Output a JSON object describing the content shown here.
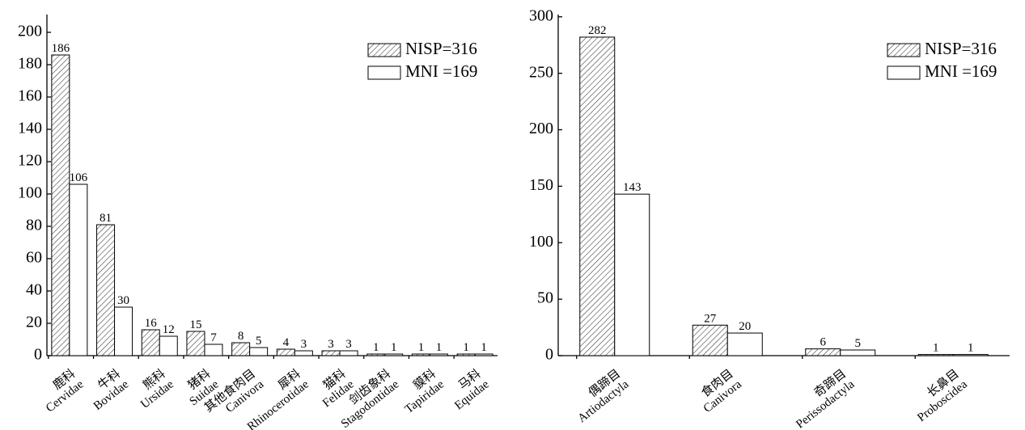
{
  "chart_data": [
    {
      "type": "bar",
      "categories": [
        "鹿科\nCervidae",
        "牛科\nBovidae",
        "熊科\nUrsidae",
        "猪科\nSuidae",
        "其他食肉目\nCanivora",
        "犀科\nRhinocerotidae",
        "猫科\nFelidae",
        "剑齿象科\nStagodontidae",
        "貘科\nTapiridae",
        "马科\nEquidae"
      ],
      "series": [
        {
          "name": "NISP=316",
          "color": "#ffffff",
          "hatch": true,
          "values": [
            186,
            81,
            16,
            15,
            8,
            4,
            3,
            1,
            1,
            1
          ]
        },
        {
          "name": "MNI =169",
          "color": "#ffffff",
          "hatch": false,
          "values": [
            106,
            30,
            12,
            7,
            5,
            3,
            3,
            1,
            1,
            1
          ]
        }
      ],
      "ylim": [
        0,
        211
      ],
      "yticks": [
        0,
        20,
        40,
        60,
        80,
        100,
        120,
        140,
        160,
        180,
        200
      ],
      "legend": "top-right"
    },
    {
      "type": "bar",
      "categories": [
        "偶蹄目\nArtiodactyla",
        "食肉目\nCanivora",
        "奇蹄目\nPerissodactyla",
        "长鼻目\nProboscidea"
      ],
      "series": [
        {
          "name": "NISP=316",
          "color": "#ffffff",
          "hatch": true,
          "values": [
            282,
            27,
            6,
            1
          ]
        },
        {
          "name": "MNI =169",
          "color": "#ffffff",
          "hatch": false,
          "values": [
            143,
            20,
            5,
            1
          ]
        }
      ],
      "ylim": [
        0,
        302
      ],
      "yticks": [
        0,
        50,
        100,
        150,
        200,
        250,
        300
      ],
      "legend": "top-right"
    }
  ]
}
